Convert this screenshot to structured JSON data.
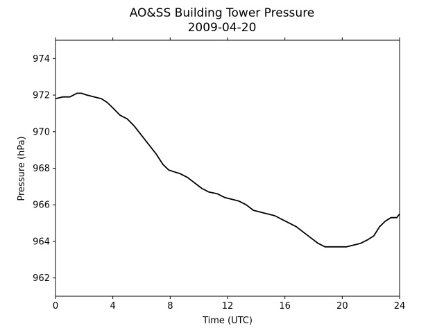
{
  "chart_data": {
    "type": "line",
    "title": "AO&SS Building Tower Pressure",
    "subtitle": "2009-04-20",
    "xlabel": "Time (UTC)",
    "ylabel": "Pressure (hPa)",
    "xlim": [
      0,
      24
    ],
    "ylim": [
      961,
      975
    ],
    "xticks": [
      0,
      4,
      8,
      12,
      16,
      20,
      24
    ],
    "yticks": [
      962,
      964,
      966,
      968,
      970,
      972,
      974
    ],
    "grid": false,
    "legend": "none",
    "line_color": "#000000",
    "series": [
      {
        "x": [
          0,
          0.5,
          1,
          1.5,
          1.8,
          2.2,
          2.7,
          3.2,
          3.6,
          4,
          4.5,
          5,
          5.5,
          6,
          6.5,
          7,
          7.5,
          7.9,
          8.3,
          8.7,
          9.2,
          9.7,
          10.2,
          10.7,
          11.3,
          11.8,
          12.3,
          12.8,
          13.3,
          13.8,
          14.3,
          14.8,
          15.3,
          15.8,
          16.3,
          16.8,
          17.3,
          17.8,
          18.3,
          18.8,
          19.3,
          19.8,
          20.3,
          20.8,
          21.3,
          21.8,
          22.2,
          22.6,
          23,
          23.4,
          23.8,
          24
        ],
        "y": [
          971.8,
          971.9,
          971.9,
          972.1,
          972.1,
          972.0,
          971.9,
          971.8,
          971.6,
          971.3,
          970.9,
          970.7,
          970.3,
          969.8,
          969.3,
          968.8,
          968.2,
          967.9,
          967.8,
          967.7,
          967.5,
          967.2,
          966.9,
          966.7,
          966.6,
          966.4,
          966.3,
          966.2,
          966.0,
          965.7,
          965.6,
          965.5,
          965.4,
          965.2,
          965.0,
          964.8,
          964.5,
          964.2,
          963.9,
          963.7,
          963.7,
          963.7,
          963.7,
          963.8,
          963.9,
          964.1,
          964.3,
          964.8,
          965.1,
          965.3,
          965.3,
          965.5
        ]
      }
    ]
  }
}
